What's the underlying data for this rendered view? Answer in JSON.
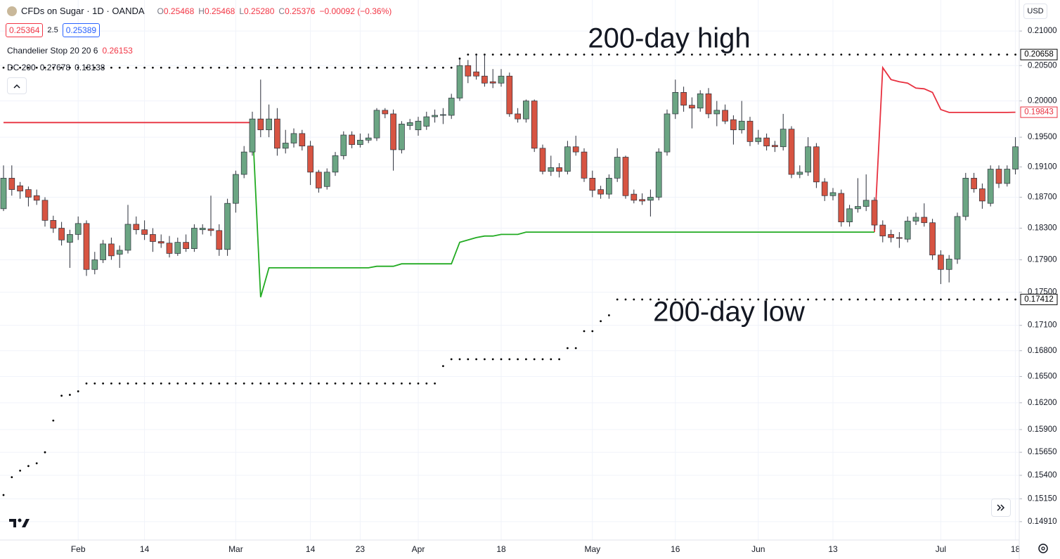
{
  "header": {
    "symbol": "CFDs on Sugar · 1D · OANDA",
    "ohlc": [
      {
        "key": "O",
        "value": "0.25468"
      },
      {
        "key": "H",
        "value": "0.25468"
      },
      {
        "key": "L",
        "value": "0.25280"
      },
      {
        "key": "C",
        "value": "0.25376"
      }
    ],
    "change": "−0.00092 (−0.36%)",
    "sell": "0.25364",
    "spread": "2.5",
    "buy": "0.25389",
    "currency": "USD"
  },
  "indicators": [
    {
      "name": "Chandelier Stop 20 20 6",
      "values": [
        "0.26153"
      ]
    },
    {
      "name": "DC 200",
      "values": [
        "0.27678",
        "0.18138"
      ]
    }
  ],
  "chart_data": {
    "type": "candlestick",
    "log_scale": true,
    "grid": true,
    "annotations": [
      "200-day high",
      "200-day low"
    ],
    "up_color": "#6ba583",
    "down_color": "#d75442",
    "wick_color": "#2a2e39",
    "ylim": [
      0.1472,
      0.2146
    ],
    "yticks": [
      {
        "value": 0.21,
        "label": "0.21000"
      },
      {
        "value": 0.205,
        "label": "0.20500"
      },
      {
        "value": 0.2,
        "label": "0.20000"
      },
      {
        "value": 0.195,
        "label": "0.19500"
      },
      {
        "value": 0.191,
        "label": "0.19100"
      },
      {
        "value": 0.187,
        "label": "0.18700"
      },
      {
        "value": 0.183,
        "label": "0.18300"
      },
      {
        "value": 0.179,
        "label": "0.17900"
      },
      {
        "value": 0.175,
        "label": "0.17500"
      },
      {
        "value": 0.171,
        "label": "0.17100"
      },
      {
        "value": 0.168,
        "label": "0.16800"
      },
      {
        "value": 0.165,
        "label": "0.16500"
      },
      {
        "value": 0.162,
        "label": "0.16200"
      },
      {
        "value": 0.159,
        "label": "0.15900"
      },
      {
        "value": 0.1565,
        "label": "0.15650"
      },
      {
        "value": 0.154,
        "label": "0.15400"
      },
      {
        "value": 0.1515,
        "label": "0.15150"
      },
      {
        "value": 0.1491,
        "label": "0.14910"
      }
    ],
    "categories": [
      null,
      null,
      null,
      null,
      null,
      null,
      null,
      null,
      null,
      "Feb",
      null,
      null,
      null,
      null,
      null,
      null,
      null,
      "14",
      null,
      null,
      null,
      null,
      null,
      null,
      null,
      null,
      null,
      null,
      "Mar",
      null,
      null,
      null,
      null,
      null,
      null,
      null,
      null,
      "14",
      null,
      null,
      null,
      null,
      null,
      "23",
      null,
      null,
      null,
      null,
      null,
      null,
      "Apr",
      null,
      null,
      null,
      null,
      null,
      null,
      null,
      null,
      null,
      "18",
      null,
      null,
      null,
      null,
      null,
      null,
      null,
      null,
      null,
      null,
      "May",
      null,
      null,
      null,
      null,
      null,
      null,
      null,
      null,
      null,
      "16",
      null,
      null,
      null,
      null,
      null,
      null,
      null,
      null,
      null,
      "Jun",
      null,
      null,
      null,
      null,
      null,
      null,
      null,
      null,
      "13",
      null,
      null,
      null,
      null,
      null,
      null,
      null,
      null,
      null,
      null,
      null,
      null,
      "Jul",
      null,
      null,
      null,
      null,
      null,
      null,
      null,
      null,
      "18"
    ],
    "open": [
      0.1855,
      0.1895,
      0.1885,
      0.188,
      0.1872,
      0.1866,
      0.184,
      0.183,
      0.1812,
      0.1822,
      0.1836,
      0.1778,
      0.179,
      0.181,
      0.1797,
      0.1802,
      0.1835,
      0.1828,
      0.1822,
      0.1813,
      0.1811,
      0.1798,
      0.1812,
      0.1804,
      0.1828,
      0.1829,
      0.1827,
      0.1803,
      0.1862,
      0.19,
      0.193,
      0.1975,
      0.196,
      0.1975,
      0.1935,
      0.1942,
      0.1955,
      0.1938,
      0.1903,
      0.1884,
      0.1903,
      0.1925,
      0.1953,
      0.194,
      0.1946,
      0.1949,
      0.1987,
      0.1982,
      0.1933,
      0.1966,
      0.196,
      0.1965,
      0.1978,
      0.198,
      0.198,
      0.2004,
      0.205,
      0.2041,
      0.2035,
      0.2027,
      0.2025,
      0.2035,
      0.1982,
      0.1975,
      0.2,
      0.1935,
      0.1904,
      0.1909,
      0.1904,
      0.1937,
      0.193,
      0.1895,
      0.188,
      0.1874,
      0.1895,
      0.1923,
      0.1874,
      0.1867,
      0.1866,
      0.187,
      0.193,
      0.1982,
      0.2012,
      0.1994,
      0.199,
      0.201,
      0.1982,
      0.1987,
      0.1974,
      0.196,
      0.1972,
      0.1944,
      0.1949,
      0.1939,
      0.1937,
      0.1961,
      0.19,
      0.1903,
      0.1937,
      0.189,
      0.1872,
      0.1875,
      0.1838,
      0.1855,
      0.1858,
      0.1866,
      0.1834,
      0.1822,
      0.1818,
      0.1816,
      0.1839,
      0.1844,
      0.1837,
      0.1796,
      0.1778,
      0.1791,
      0.1845,
      0.1895,
      0.1881,
      0.1862,
      0.1907,
      0.1888,
      0.1907
    ],
    "high": [
      0.1912,
      0.1912,
      0.189,
      0.1884,
      0.188,
      0.187,
      0.1846,
      0.1838,
      0.1828,
      0.1845,
      0.184,
      0.18,
      0.1815,
      0.1818,
      0.1808,
      0.186,
      0.1845,
      0.184,
      0.183,
      0.1822,
      0.182,
      0.1818,
      0.1822,
      0.1835,
      0.1835,
      0.1872,
      0.1835,
      0.1868,
      0.1905,
      0.1938,
      0.1985,
      0.203,
      0.1995,
      0.199,
      0.196,
      0.1962,
      0.196,
      0.1945,
      0.1906,
      0.1908,
      0.193,
      0.1958,
      0.1958,
      0.1955,
      0.1955,
      0.199,
      0.199,
      0.1988,
      0.1972,
      0.1975,
      0.1978,
      0.1985,
      0.1988,
      0.199,
      0.201,
      0.206,
      0.2058,
      0.2066,
      0.2066,
      0.2045,
      0.2045,
      0.204,
      0.199,
      0.2002,
      0.2002,
      0.194,
      0.1925,
      0.1915,
      0.1945,
      0.1952,
      0.1935,
      0.1905,
      0.1885,
      0.19,
      0.1935,
      0.1925,
      0.188,
      0.1875,
      0.188,
      0.1935,
      0.1988,
      0.203,
      0.202,
      0.2005,
      0.2015,
      0.2018,
      0.2,
      0.1995,
      0.198,
      0.2,
      0.1978,
      0.196,
      0.1955,
      0.1945,
      0.1982,
      0.1965,
      0.1912,
      0.195,
      0.1942,
      0.1895,
      0.1882,
      0.188,
      0.186,
      0.1895,
      0.19,
      0.187,
      0.184,
      0.1828,
      0.1825,
      0.1845,
      0.185,
      0.1862,
      0.1842,
      0.1802,
      0.1796,
      0.185,
      0.1902,
      0.1902,
      0.1888,
      0.1912,
      0.1912,
      0.1912,
      0.195
    ],
    "low": [
      0.1852,
      0.1872,
      0.1868,
      0.1858,
      0.186,
      0.1832,
      0.1824,
      0.1808,
      0.178,
      0.1815,
      0.177,
      0.1772,
      0.1786,
      0.179,
      0.178,
      0.1798,
      0.1822,
      0.1815,
      0.18,
      0.1805,
      0.1793,
      0.1795,
      0.18,
      0.18,
      0.1822,
      0.182,
      0.1795,
      0.1795,
      0.185,
      0.1895,
      0.1925,
      0.195,
      0.195,
      0.1925,
      0.1928,
      0.1936,
      0.1932,
      0.1886,
      0.1876,
      0.188,
      0.1898,
      0.192,
      0.1935,
      0.1936,
      0.1942,
      0.1945,
      0.1976,
      0.1905,
      0.1928,
      0.196,
      0.1952,
      0.196,
      0.197,
      0.1968,
      0.1975,
      0.2,
      0.2025,
      0.203,
      0.202,
      0.2018,
      0.202,
      0.1978,
      0.197,
      0.197,
      0.193,
      0.19,
      0.1898,
      0.1896,
      0.19,
      0.1925,
      0.189,
      0.187,
      0.1868,
      0.1868,
      0.189,
      0.1868,
      0.1862,
      0.186,
      0.1845,
      0.1866,
      0.1925,
      0.1975,
      0.1985,
      0.1962,
      0.1985,
      0.1976,
      0.1965,
      0.1968,
      0.194,
      0.1955,
      0.1938,
      0.194,
      0.1932,
      0.193,
      0.1932,
      0.1895,
      0.1895,
      0.1898,
      0.1882,
      0.1865,
      0.1866,
      0.1832,
      0.1832,
      0.185,
      0.1852,
      0.1828,
      0.1812,
      0.1812,
      0.1805,
      0.1812,
      0.1834,
      0.1832,
      0.179,
      0.176,
      0.1762,
      0.1785,
      0.184,
      0.1876,
      0.1855,
      0.1858,
      0.1882,
      0.1884,
      0.19
    ],
    "close": [
      0.1895,
      0.188,
      0.1878,
      0.187,
      0.1866,
      0.184,
      0.183,
      0.1815,
      0.1822,
      0.1836,
      0.1778,
      0.179,
      0.181,
      0.1795,
      0.1802,
      0.1835,
      0.1828,
      0.1822,
      0.1813,
      0.1811,
      0.1798,
      0.1812,
      0.1804,
      0.183,
      0.183,
      0.1827,
      0.1803,
      0.1862,
      0.19,
      0.193,
      0.1975,
      0.196,
      0.1975,
      0.1935,
      0.1942,
      0.1955,
      0.1938,
      0.1903,
      0.1882,
      0.1903,
      0.1925,
      0.1953,
      0.194,
      0.1946,
      0.1949,
      0.1987,
      0.1982,
      0.1933,
      0.1968,
      0.197,
      0.1972,
      0.1978,
      0.198,
      0.1981,
      0.2004,
      0.205,
      0.2035,
      0.2035,
      0.2025,
      0.2025,
      0.2035,
      0.1982,
      0.1975,
      0.2,
      0.1935,
      0.1904,
      0.1909,
      0.1904,
      0.1937,
      0.193,
      0.1895,
      0.1879,
      0.1874,
      0.1895,
      0.1923,
      0.1872,
      0.1866,
      0.1865,
      0.187,
      0.193,
      0.1982,
      0.2012,
      0.1994,
      0.199,
      0.201,
      0.1982,
      0.1987,
      0.1972,
      0.196,
      0.1972,
      0.1944,
      0.1949,
      0.1938,
      0.1937,
      0.1961,
      0.19,
      0.1903,
      0.1937,
      0.189,
      0.1872,
      0.1876,
      0.1838,
      0.1855,
      0.1858,
      0.1866,
      0.1834,
      0.182,
      0.1818,
      0.1817,
      0.1839,
      0.1844,
      0.1837,
      0.1796,
      0.1778,
      0.1791,
      0.1845,
      0.1895,
      0.1881,
      0.1865,
      0.1907,
      0.1888,
      0.1907,
      0.1937
    ],
    "lines": [
      {
        "color": "#e8303f",
        "values": [
          0.197,
          0.197,
          0.197,
          0.197,
          0.197,
          0.197,
          0.197,
          0.197,
          0.197,
          0.197,
          0.197,
          0.197,
          0.197,
          0.197,
          0.197,
          0.197,
          0.197,
          0.197,
          0.197,
          0.197,
          0.197,
          0.197,
          0.197,
          0.197,
          0.197,
          0.197,
          0.197,
          0.197,
          0.197,
          0.197,
          0.197,
          null,
          null,
          null,
          null,
          null,
          null,
          null,
          null,
          null,
          null,
          null,
          null,
          null,
          null,
          null,
          null,
          null,
          null,
          null,
          null,
          null,
          null,
          null,
          null,
          null,
          null,
          null,
          null,
          null,
          null,
          null,
          null,
          null,
          null,
          null,
          null,
          null,
          null,
          null,
          null,
          null,
          null,
          null,
          null,
          null,
          null,
          null,
          null,
          null,
          null,
          null,
          null,
          null,
          null,
          null,
          null,
          null,
          null,
          null,
          null,
          null,
          null,
          null,
          null,
          null,
          null,
          null,
          null,
          null,
          null,
          null,
          null,
          null,
          null,
          0.1825,
          0.2047,
          0.203,
          0.2027,
          0.2025,
          0.2018,
          0.2017,
          0.2012,
          0.1988,
          0.1984,
          0.1984,
          0.1984,
          0.1984,
          0.1984,
          0.1984,
          0.1984,
          0.1984,
          0.19843
        ]
      },
      {
        "color": "#22ab22",
        "values": [
          null,
          null,
          null,
          null,
          null,
          null,
          null,
          null,
          null,
          null,
          null,
          null,
          null,
          null,
          null,
          null,
          null,
          null,
          null,
          null,
          null,
          null,
          null,
          null,
          null,
          null,
          null,
          null,
          null,
          null,
          0.197,
          0.1744,
          0.178,
          0.178,
          0.178,
          0.178,
          0.178,
          0.178,
          0.178,
          0.178,
          0.178,
          0.178,
          0.178,
          0.178,
          0.178,
          0.1782,
          0.1782,
          0.1782,
          0.1785,
          0.1785,
          0.1785,
          0.1785,
          0.1785,
          0.1785,
          0.1785,
          0.1812,
          0.1815,
          0.1818,
          0.182,
          0.182,
          0.1822,
          0.1822,
          0.1822,
          0.1825,
          0.1825,
          0.1825,
          0.1825,
          0.1825,
          0.1825,
          0.1825,
          0.1825,
          0.1825,
          0.1825,
          0.1825,
          0.1825,
          0.1825,
          0.1825,
          0.1825,
          0.1825,
          0.1825,
          0.1825,
          0.1825,
          0.1825,
          0.1825,
          0.1825,
          0.1825,
          0.1825,
          0.1825,
          0.1825,
          0.1825,
          0.1825,
          0.1825,
          0.1825,
          0.1825,
          0.1825,
          0.1825,
          0.1825,
          0.1825,
          0.1825,
          0.1825,
          0.1825,
          0.1825,
          0.1825,
          0.1825,
          0.1825,
          0.1825,
          null,
          null,
          null,
          null,
          null,
          null,
          null,
          null,
          null,
          null,
          null,
          null,
          null,
          null,
          null,
          null,
          null
        ]
      }
    ],
    "donchian": {
      "color": "#000000",
      "upper": [
        0.2047,
        0.2047,
        0.2047,
        0.2047,
        0.2047,
        0.2047,
        0.2047,
        0.2047,
        0.2047,
        0.2047,
        0.2047,
        0.2047,
        0.2047,
        0.2047,
        0.2047,
        0.2047,
        0.2047,
        0.2047,
        0.2047,
        0.2047,
        0.2047,
        0.2047,
        0.2047,
        0.2047,
        0.2047,
        0.2047,
        0.2047,
        0.2047,
        0.2047,
        0.2047,
        0.2047,
        0.2047,
        0.2047,
        0.2047,
        0.2047,
        0.2047,
        0.2047,
        0.2047,
        0.2047,
        0.2047,
        0.2047,
        0.2047,
        0.2047,
        0.2047,
        0.2047,
        0.2047,
        0.2047,
        0.2047,
        0.2047,
        0.2047,
        0.2047,
        0.2047,
        0.2047,
        0.2047,
        0.2047,
        0.206,
        0.20658,
        0.20658,
        0.20658,
        0.20658,
        0.20658,
        0.20658,
        0.20658,
        0.20658,
        0.20658,
        0.20658,
        0.20658,
        0.20658,
        0.20658,
        0.20658,
        0.20658,
        0.20658,
        0.20658,
        0.20658,
        0.20658,
        0.20658,
        0.20658,
        0.20658,
        0.20658,
        0.20658,
        0.20658,
        0.20658,
        0.20658,
        0.20658,
        0.20658,
        0.20658,
        0.20658,
        0.20658,
        0.20658,
        0.20658,
        0.20658,
        0.20658,
        0.20658,
        0.20658,
        0.20658,
        0.20658,
        0.20658,
        0.20658,
        0.20658,
        0.20658,
        0.20658,
        0.20658,
        0.20658,
        0.20658,
        0.20658,
        0.20658,
        0.20658,
        0.20658,
        0.20658,
        0.20658,
        0.20658,
        0.20658,
        0.20658,
        0.20658,
        0.20658,
        0.20658,
        0.20658,
        0.20658,
        0.20658,
        0.20658,
        0.20658,
        0.20658,
        0.20658
      ],
      "lower": [
        0.1519,
        0.1538,
        0.1545,
        0.155,
        0.1553,
        0.1565,
        0.16,
        0.1628,
        0.1629,
        0.1633,
        0.1642,
        0.1642,
        0.1642,
        0.1642,
        0.1642,
        0.1642,
        0.1642,
        0.1642,
        0.1642,
        0.1642,
        0.1642,
        0.1642,
        0.1642,
        0.1642,
        0.1642,
        0.1642,
        0.1642,
        0.1642,
        0.1642,
        0.1642,
        0.1642,
        0.1642,
        0.1642,
        0.1642,
        0.1642,
        0.1642,
        0.1642,
        0.1642,
        0.1642,
        0.1642,
        0.1642,
        0.1642,
        0.1642,
        0.1642,
        0.1642,
        0.1642,
        0.1642,
        0.1642,
        0.1642,
        0.1642,
        0.1642,
        0.1642,
        0.1642,
        0.1662,
        0.167,
        0.167,
        0.167,
        0.167,
        0.167,
        0.167,
        0.167,
        0.167,
        0.167,
        0.167,
        0.167,
        0.167,
        0.167,
        0.167,
        0.1683,
        0.1683,
        0.1703,
        0.1703,
        0.1715,
        0.1722,
        0.17412,
        0.17412,
        0.17412,
        0.17412,
        0.17412,
        0.17412,
        0.17412,
        0.17412,
        0.17412,
        0.17412,
        0.17412,
        0.17412,
        0.17412,
        0.17412,
        0.17412,
        0.17412,
        0.17412,
        0.17412,
        0.17412,
        0.17412,
        0.17412,
        0.17412,
        0.17412,
        0.17412,
        0.17412,
        0.17412,
        0.17412,
        0.17412,
        0.17412,
        0.17412,
        0.17412,
        0.17412,
        0.17412,
        0.17412,
        0.17412,
        0.17412,
        0.17412,
        0.17412,
        0.17412,
        0.17412,
        0.17412,
        0.17412,
        0.17412,
        0.17412,
        0.17412,
        0.17412,
        0.17412,
        0.17412,
        0.17412
      ]
    }
  }
}
